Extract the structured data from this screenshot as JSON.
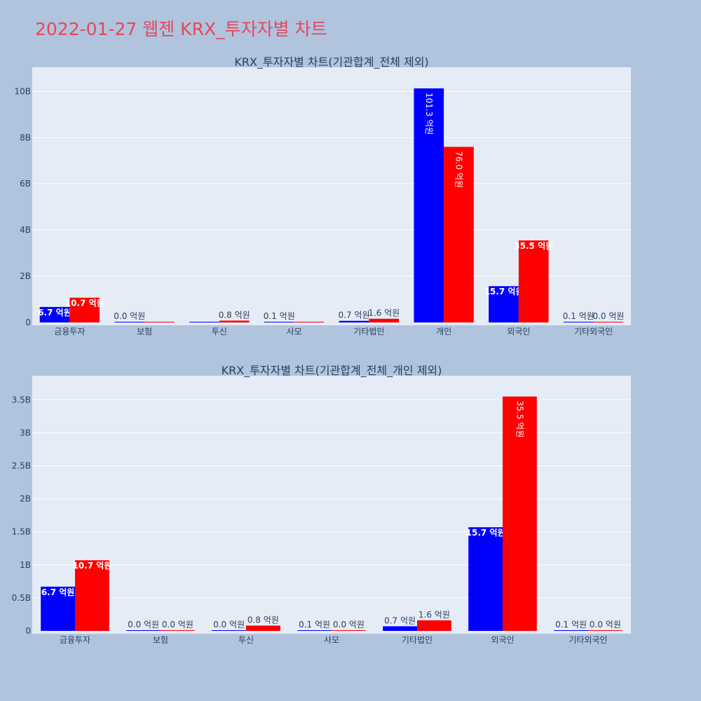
{
  "title": "2022-01-27 웹젠 KRX_투자자별 차트",
  "colors": {
    "buy": "#0000ff",
    "sell": "#ff0000",
    "background": "#b0c4de",
    "plot_bg": "#e5ecf6",
    "title": "#e8465a"
  },
  "chart_data": [
    {
      "type": "bar",
      "title": "KRX_투자자별 차트(기관합계_전체 제외)",
      "categories": [
        "금융투자",
        "보험",
        "투신",
        "사모",
        "기타법인",
        "개인",
        "외국인",
        "기타외국인"
      ],
      "series": [
        {
          "color": "#0000ff",
          "values": [
            0.67,
            0.0,
            0.0,
            0.01,
            0.07,
            10.13,
            1.57,
            0.01
          ],
          "labels": [
            "6.7 억원",
            "0.0 억원",
            "",
            "0.1 억원",
            "0.7 억원",
            "101.3 억원",
            "15.7 억원",
            "0.1 억원"
          ]
        },
        {
          "color": "#ff0000",
          "values": [
            1.07,
            0.0,
            0.08,
            0.0,
            0.16,
            7.6,
            3.55,
            0.0
          ],
          "labels": [
            "10.7 억원",
            "",
            "0.8 억원",
            "",
            "1.6 억원",
            "76.0 억원",
            "35.5 억원",
            "0.0 억원"
          ]
        }
      ],
      "yticks": [
        "0",
        "2B",
        "4B",
        "6B",
        "8B",
        "10B"
      ],
      "ytick_values": [
        0,
        2,
        4,
        6,
        8,
        10
      ],
      "ylim": [
        0,
        10.8
      ],
      "grid": true
    },
    {
      "type": "bar",
      "title": "KRX_투자자별 차트(기관합계_전체_개인 제외)",
      "categories": [
        "금융투자",
        "보험",
        "투신",
        "사모",
        "기타법인",
        "외국인",
        "기타외국인"
      ],
      "series": [
        {
          "color": "#0000ff",
          "values": [
            0.67,
            0.0,
            0.0,
            0.01,
            0.07,
            1.57,
            0.01
          ],
          "labels": [
            "6.7 억원",
            "0.0 억원",
            "0.0 억원",
            "0.1 억원",
            "0.7 억원",
            "15.7 억원",
            "0.1 억원"
          ]
        },
        {
          "color": "#ff0000",
          "values": [
            1.07,
            0.0,
            0.08,
            0.0,
            0.16,
            3.55,
            0.0
          ],
          "labels": [
            "10.7 억원",
            "0.0 억원",
            "0.8 억원",
            "0.0 억원",
            "1.6 억원",
            "35.5 억원",
            "0.0 억원"
          ]
        }
      ],
      "yticks": [
        "0",
        "0.5B",
        "1B",
        "1.5B",
        "2B",
        "2.5B",
        "3B",
        "3.5B"
      ],
      "ytick_values": [
        0,
        0.5,
        1,
        1.5,
        2,
        2.5,
        3,
        3.5
      ],
      "ylim": [
        0,
        3.78
      ],
      "grid": true
    }
  ]
}
